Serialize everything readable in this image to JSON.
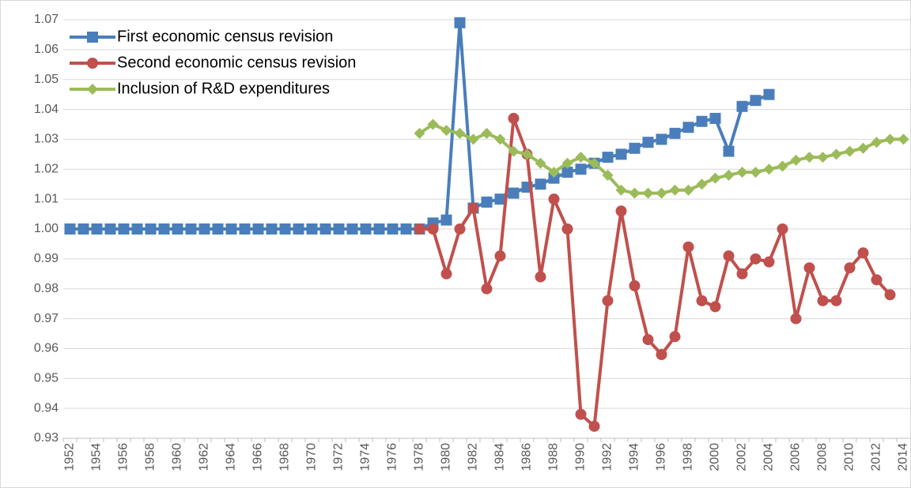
{
  "chart_data": {
    "type": "line",
    "categories": [
      "1952",
      null,
      "1954",
      null,
      "1956",
      null,
      "1958",
      null,
      "1960",
      null,
      "1962",
      null,
      "1964",
      null,
      "1966",
      null,
      "1968",
      null,
      "1970",
      null,
      "1972",
      null,
      "1974",
      null,
      "1976",
      null,
      "1978",
      null,
      "1980",
      null,
      "1982",
      null,
      "1984",
      null,
      "1986",
      null,
      "1988",
      null,
      "1990",
      null,
      "1992",
      null,
      "1994",
      null,
      "1996",
      null,
      "1998",
      null,
      "2000",
      null,
      "2002",
      null,
      "2004",
      null,
      "2006",
      null,
      "2008",
      null,
      "2010",
      null,
      "2012",
      null,
      "2014"
    ],
    "series": [
      {
        "name": "First economic census revision",
        "color": "#4a7ebb",
        "marker": "square",
        "values": [
          1,
          1,
          1,
          1,
          1,
          1,
          1,
          1,
          1,
          1,
          1,
          1,
          1,
          1,
          1,
          1,
          1,
          1,
          1,
          1,
          1,
          1,
          1,
          1,
          1,
          1,
          1.0,
          1.002,
          1.003,
          1.069,
          1.007,
          1.009,
          1.01,
          1.012,
          1.014,
          1.015,
          1.017,
          1.019,
          1.02,
          1.022,
          1.024,
          1.025,
          1.027,
          1.029,
          1.03,
          1.032,
          1.034,
          1.036,
          1.037,
          1.026,
          1.041,
          1.043,
          1.045,
          null,
          null,
          null,
          null,
          null,
          null,
          null,
          null,
          null,
          null
        ]
      },
      {
        "name": "Second economic census revision",
        "color": "#c0504d",
        "marker": "circle",
        "values": [
          null,
          null,
          null,
          null,
          null,
          null,
          null,
          null,
          null,
          null,
          null,
          null,
          null,
          null,
          null,
          null,
          null,
          null,
          null,
          null,
          null,
          null,
          null,
          null,
          null,
          null,
          1.0,
          1.0,
          0.985,
          1.0,
          1.007,
          0.98,
          0.991,
          1.037,
          1.025,
          0.984,
          1.01,
          1.0,
          0.938,
          0.934,
          0.976,
          1.006,
          0.981,
          0.963,
          0.958,
          0.964,
          0.994,
          0.976,
          0.974,
          0.991,
          0.985,
          0.99,
          0.989,
          1.0,
          0.97,
          0.987,
          0.976,
          0.976,
          0.987,
          0.992,
          0.983,
          0.978,
          null
        ]
      },
      {
        "name": "Inclusion of R&D expenditures",
        "color": "#9bbb59",
        "marker": "diamond",
        "values": [
          null,
          null,
          null,
          null,
          null,
          null,
          null,
          null,
          null,
          null,
          null,
          null,
          null,
          null,
          null,
          null,
          null,
          null,
          null,
          null,
          null,
          null,
          null,
          null,
          null,
          null,
          1.032,
          1.035,
          1.033,
          1.032,
          1.03,
          1.032,
          1.03,
          1.026,
          1.025,
          1.022,
          1.019,
          1.022,
          1.024,
          1.022,
          1.018,
          1.013,
          1.012,
          1.012,
          1.012,
          1.013,
          1.013,
          1.015,
          1.017,
          1.018,
          1.019,
          1.019,
          1.02,
          1.021,
          1.023,
          1.024,
          1.024,
          1.025,
          1.026,
          1.027,
          1.029,
          1.03,
          1.03
        ]
      }
    ],
    "ylim": [
      0.93,
      1.07
    ],
    "yticks": [
      0.93,
      0.94,
      0.95,
      0.96,
      0.97,
      0.98,
      0.99,
      {
        "value": 1,
        "label": "1.00"
      },
      1.01,
      1.02,
      1.03,
      1.04,
      1.05,
      1.06,
      1.07
    ],
    "grid": true,
    "legend": "upper left"
  }
}
